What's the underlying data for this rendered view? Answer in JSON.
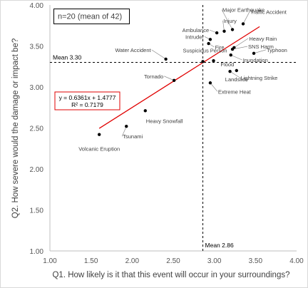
{
  "chart_data": {
    "type": "scatter",
    "sample_note": "n=20 (mean of 42)",
    "xlabel": "Q1. How likely is it that this event will occur in your surroundings?",
    "ylabel": "Q2. How severe would the damage or impact be?",
    "xlim": [
      1.0,
      4.0
    ],
    "ylim": [
      1.0,
      4.0
    ],
    "x_ticks": [
      "1.00",
      "1.50",
      "2.00",
      "2.50",
      "3.00",
      "3.50",
      "4.00"
    ],
    "y_ticks": [
      "1.00",
      "1.50",
      "2.00",
      "2.50",
      "3.00",
      "3.50",
      "4.00"
    ],
    "mean_x": {
      "value": 2.86,
      "label": "Mean 2.86"
    },
    "mean_y": {
      "value": 3.3,
      "label": "Mean 3.30"
    },
    "trendline": {
      "slope": 0.6361,
      "intercept": 1.4777,
      "x_range": [
        1.6,
        3.55
      ],
      "equation": "y = 0.6361x + 1.4777",
      "r2": "R² = 0.7179",
      "color": "#e00000"
    },
    "points": [
      {
        "label": "Traffic Accident",
        "x": 3.35,
        "y": 3.77
      },
      {
        "label": "Major Earthquake",
        "x": 3.22,
        "y": 3.7
      },
      {
        "label": "Injury",
        "x": 3.12,
        "y": 3.68
      },
      {
        "label": "Ambulance",
        "x": 3.03,
        "y": 3.66
      },
      {
        "label": "Intruder",
        "x": 2.95,
        "y": 3.58
      },
      {
        "label": "Fire",
        "x": 2.93,
        "y": 3.53
      },
      {
        "label": "Heavy Rain",
        "x": 3.24,
        "y": 3.48
      },
      {
        "label": "SNS Harm",
        "x": 3.22,
        "y": 3.46
      },
      {
        "label": "Typhoon",
        "x": 3.48,
        "y": 3.41
      },
      {
        "label": "Inundation",
        "x": 3.2,
        "y": 3.39
      },
      {
        "label": "Water Accident",
        "x": 2.41,
        "y": 3.34
      },
      {
        "label": "Suspicious Person",
        "x": 2.86,
        "y": 3.31
      },
      {
        "label": "Flood",
        "x": 2.99,
        "y": 3.32
      },
      {
        "label": "Landslide",
        "x": 3.27,
        "y": 3.2
      },
      {
        "label": "Lightning Strike",
        "x": 3.19,
        "y": 3.19
      },
      {
        "label": "Tornado",
        "x": 2.51,
        "y": 3.08
      },
      {
        "label": "Extreme Heat",
        "x": 2.95,
        "y": 3.05
      },
      {
        "label": "Heavy Snowfall",
        "x": 2.16,
        "y": 2.71
      },
      {
        "label": "Tsunami",
        "x": 1.93,
        "y": 2.52
      },
      {
        "label": "Volcanic Eruption",
        "x": 1.6,
        "y": 2.42
      }
    ],
    "grid": false,
    "legend": "none"
  }
}
